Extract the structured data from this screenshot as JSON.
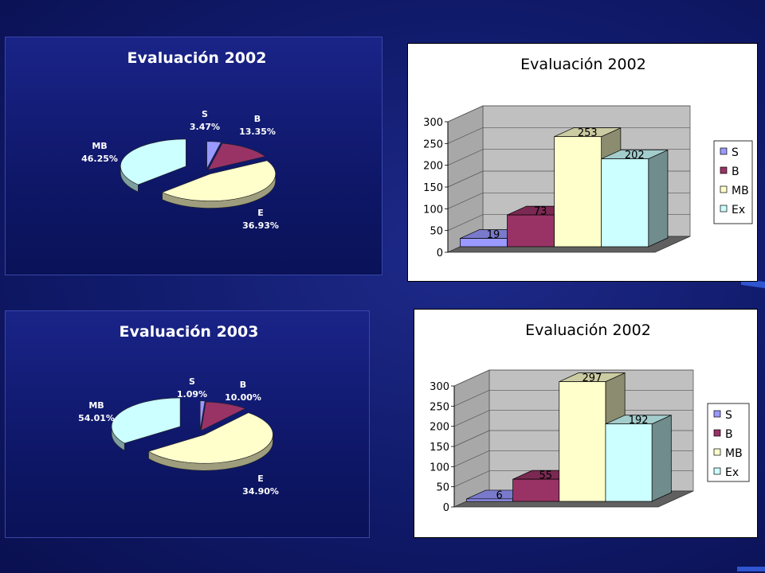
{
  "slide": {
    "background": "#101a6a",
    "accent": "#3a62e0"
  },
  "chart_data": [
    {
      "type": "pie",
      "title": "Evaluación 2002",
      "slices": [
        {
          "label": "S",
          "percent": "3.47%",
          "value": 3.47,
          "color": "#9999ff"
        },
        {
          "label": "B",
          "percent": "13.35%",
          "value": 13.35,
          "color": "#993366"
        },
        {
          "label": "MB",
          "percent": "46.25%",
          "value": 46.25,
          "color": "#ffffcc"
        },
        {
          "label": "E",
          "percent": "36.93%",
          "value": 36.93,
          "color": "#ccffff"
        }
      ]
    },
    {
      "type": "bar",
      "title": "Evaluación 2002",
      "categories": [
        "S",
        "B",
        "MB",
        "Ex"
      ],
      "values": [
        19,
        73,
        253,
        202
      ],
      "colors": [
        "#9999ff",
        "#993366",
        "#ffffcc",
        "#ccffff"
      ],
      "ylim": [
        0,
        300
      ],
      "yticks": [
        0,
        50,
        100,
        150,
        200,
        250,
        300
      ],
      "legend": "right",
      "grid": true
    },
    {
      "type": "pie",
      "title": "Evaluación 2003",
      "slices": [
        {
          "label": "S",
          "percent": "1.09%",
          "value": 1.09,
          "color": "#9999ff"
        },
        {
          "label": "B",
          "percent": "10.00%",
          "value": 10.0,
          "color": "#993366"
        },
        {
          "label": "MB",
          "percent": "54.01%",
          "value": 54.01,
          "color": "#ffffcc"
        },
        {
          "label": "E",
          "percent": "34.90%",
          "value": 34.9,
          "color": "#ccffff"
        }
      ]
    },
    {
      "type": "bar",
      "title": "Evaluación 2002",
      "categories": [
        "S",
        "B",
        "MB",
        "Ex"
      ],
      "values": [
        6,
        55,
        297,
        192
      ],
      "colors": [
        "#9999ff",
        "#993366",
        "#ffffcc",
        "#ccffff"
      ],
      "ylim": [
        0,
        300
      ],
      "yticks": [
        0,
        50,
        100,
        150,
        200,
        250,
        300
      ],
      "legend": "right",
      "grid": true
    }
  ]
}
